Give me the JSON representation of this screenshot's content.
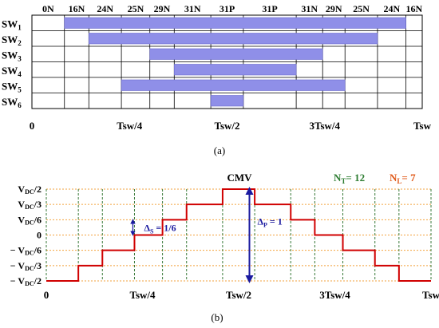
{
  "panel_a": {
    "state_labels": [
      "0N",
      "16N",
      "24N",
      "25N",
      "29N",
      "31N",
      "31P",
      "31P",
      "31N",
      "29N",
      "25N",
      "24N",
      "16N",
      "0N"
    ],
    "switches": [
      {
        "label": "SW",
        "sub": "1",
        "on": [
          0.0833,
          0.9583
        ]
      },
      {
        "label": "SW",
        "sub": "2",
        "on": [
          0.1458,
          0.8854
        ]
      },
      {
        "label": "SW",
        "sub": "3",
        "on": [
          0.3021,
          0.7448
        ]
      },
      {
        "label": "SW",
        "sub": "4",
        "on": [
          0.3646,
          0.6771
        ]
      },
      {
        "label": "SW",
        "sub": "5",
        "on": [
          0.2292,
          0.8021
        ]
      },
      {
        "label": "SW",
        "sub": "6",
        "on": [
          0.4583,
          0.5417
        ]
      }
    ],
    "bar_color": "#8f8fe8",
    "x_ticks": [
      "0",
      "Tsw/4",
      "Tsw/2",
      "3Tsw/4",
      "Tsw"
    ],
    "caption": "(a)"
  },
  "panel_b": {
    "title": "CMV",
    "nt_label": "N",
    "nt_sub": "T",
    "nt_value": "= 12",
    "nl_label": "N",
    "nl_sub": "L",
    "nl_value": "= 7",
    "nt_color": "#2e7d32",
    "nl_color": "#e05a1a",
    "levels": [
      {
        "sign": "",
        "v": "V",
        "sub": "DC",
        "frac": "/2",
        "value": 0.5
      },
      {
        "sign": "",
        "v": "V",
        "sub": "DC",
        "frac": "/3",
        "value": 0.3333
      },
      {
        "sign": "",
        "v": "V",
        "sub": "DC",
        "frac": "/6",
        "value": 0.1667
      },
      {
        "sign": "",
        "v": "0",
        "sub": "",
        "frac": "",
        "value": 0
      },
      {
        "sign": "− ",
        "v": "V",
        "sub": "DC",
        "frac": "/6",
        "value": -0.1667
      },
      {
        "sign": "− ",
        "v": "V",
        "sub": "DC",
        "frac": "/3",
        "value": -0.3333
      },
      {
        "sign": "− ",
        "v": "V",
        "sub": "DC",
        "frac": "/2",
        "value": -0.5
      }
    ],
    "cmv_steps": [
      {
        "t0": 0,
        "t1": 0.0833,
        "v": -0.5
      },
      {
        "t0": 0.0833,
        "t1": 0.1458,
        "v": -0.3333
      },
      {
        "t0": 0.1458,
        "t1": 0.2292,
        "v": -0.1667
      },
      {
        "t0": 0.2292,
        "t1": 0.3021,
        "v": 0
      },
      {
        "t0": 0.3021,
        "t1": 0.3646,
        "v": 0.1667
      },
      {
        "t0": 0.3646,
        "t1": 0.4583,
        "v": 0.3333
      },
      {
        "t0": 0.4583,
        "t1": 0.5417,
        "v": 0.5
      },
      {
        "t0": 0.5417,
        "t1": 0.6354,
        "v": 0.3333
      },
      {
        "t0": 0.6354,
        "t1": 0.6979,
        "v": 0.1667
      },
      {
        "t0": 0.6979,
        "t1": 0.7708,
        "v": 0
      },
      {
        "t0": 0.7708,
        "t1": 0.8542,
        "v": -0.1667
      },
      {
        "t0": 0.8542,
        "t1": 0.9167,
        "v": -0.3333
      },
      {
        "t0": 0.9167,
        "t1": 1,
        "v": -0.5
      }
    ],
    "cmv_color": "#d00000",
    "grid_h_color": "#f2a23c",
    "grid_v_color": "#3a7a3a",
    "delta_s_label": "Δ",
    "delta_s_sub": "S",
    "delta_s_value": "= 1/6",
    "delta_p_label": "Δ",
    "delta_p_sub": "P",
    "delta_p_value": "= 1",
    "arrow_color": "#1a1aa0",
    "x_ticks": [
      "0",
      "Tsw/4",
      "Tsw/2",
      "3Tsw/4",
      "Tsw"
    ],
    "caption": "(b)"
  }
}
